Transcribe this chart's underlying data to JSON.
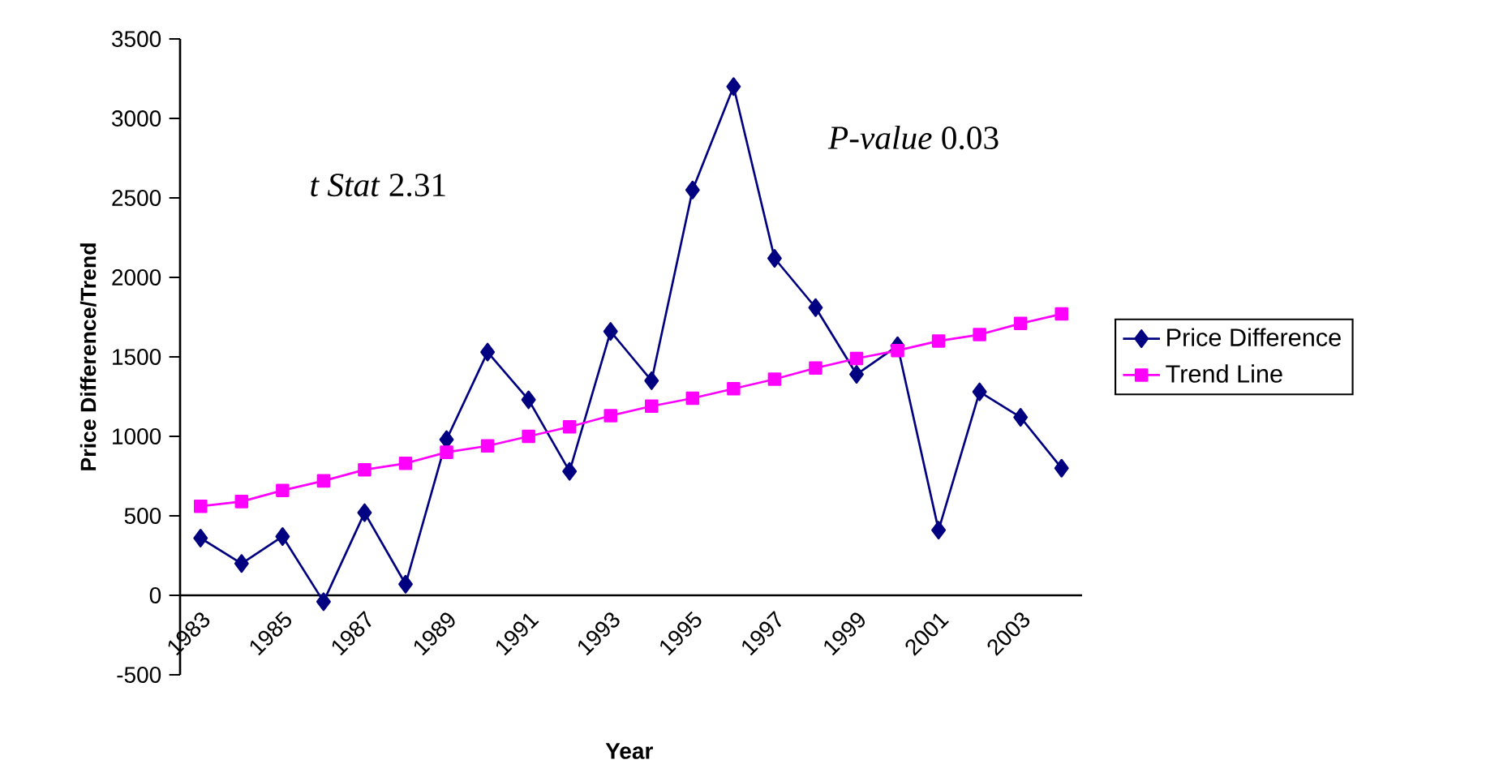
{
  "chart_data": {
    "type": "line",
    "xlabel": "Year",
    "ylabel": "Price Difference/Trend",
    "categories": [
      "1983",
      null,
      "1985",
      null,
      "1987",
      null,
      "1989",
      null,
      "1991",
      null,
      "1993",
      null,
      "1995",
      null,
      "1997",
      null,
      "1999",
      null,
      "2001",
      null,
      "2003",
      null
    ],
    "series": [
      {
        "name": "Price Difference",
        "color": "#000080",
        "marker": "diamond",
        "values": [
          360,
          200,
          370,
          -40,
          520,
          70,
          980,
          1530,
          1230,
          780,
          1660,
          1350,
          2550,
          3200,
          2120,
          1810,
          1390,
          1570,
          410,
          1280,
          1120,
          800
        ]
      },
      {
        "name": "Trend Line",
        "color": "#ff00ff",
        "marker": "square",
        "values": [
          560,
          590,
          660,
          720,
          790,
          830,
          900,
          940,
          1000,
          1060,
          1130,
          1190,
          1240,
          1300,
          1360,
          1430,
          1490,
          1540,
          1600,
          1640,
          1710,
          1770
        ]
      }
    ],
    "ylim": [
      -500,
      3500
    ],
    "yticks": [
      -500,
      0,
      500,
      1000,
      1500,
      2000,
      2500,
      3000,
      3500
    ],
    "legend": "right",
    "annotations": [
      "*t Stat*  2.31",
      "*P-value*  0.03"
    ]
  }
}
